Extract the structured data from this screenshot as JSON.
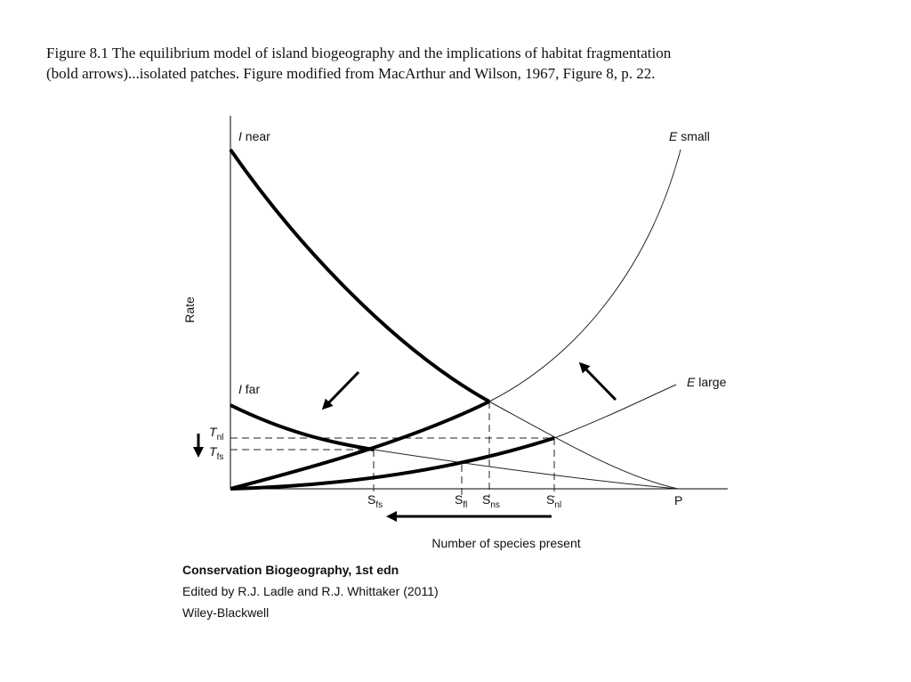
{
  "caption": {
    "line1": "Figure 8.1 The equilibrium model of island biogeography and the implications of habitat fragmentation",
    "line2": "(bold arrows)...isolated patches. Figure modified from MacArthur and Wilson, 1967, Figure 8, p. 22."
  },
  "diagram": {
    "y_label": "Rate",
    "x_label": "Number of species present",
    "curves": {
      "i_near": {
        "italic": "I",
        "text": "near"
      },
      "i_far": {
        "italic": "I",
        "text": "far"
      },
      "e_small": {
        "italic": "E",
        "text": "small"
      },
      "e_large": {
        "italic": "E",
        "text": "large"
      }
    },
    "rates": {
      "t_nl": {
        "main": "T",
        "sub": "nl"
      },
      "t_fs": {
        "main": "T",
        "sub": "fs"
      }
    },
    "species": {
      "s_fs": {
        "main": "S",
        "sub": "fs"
      },
      "s_fl": {
        "main": "S",
        "sub": "fl"
      },
      "s_ns": {
        "main": "S",
        "sub": "ns"
      },
      "s_nl": {
        "main": "S",
        "sub": "nl"
      },
      "p": "P"
    }
  },
  "source": {
    "title": "Conservation Biogeography, 1st edn",
    "editors": "Edited by R.J. Ladle and R.J. Whittaker (2011)",
    "publisher": "Wiley-Blackwell"
  }
}
